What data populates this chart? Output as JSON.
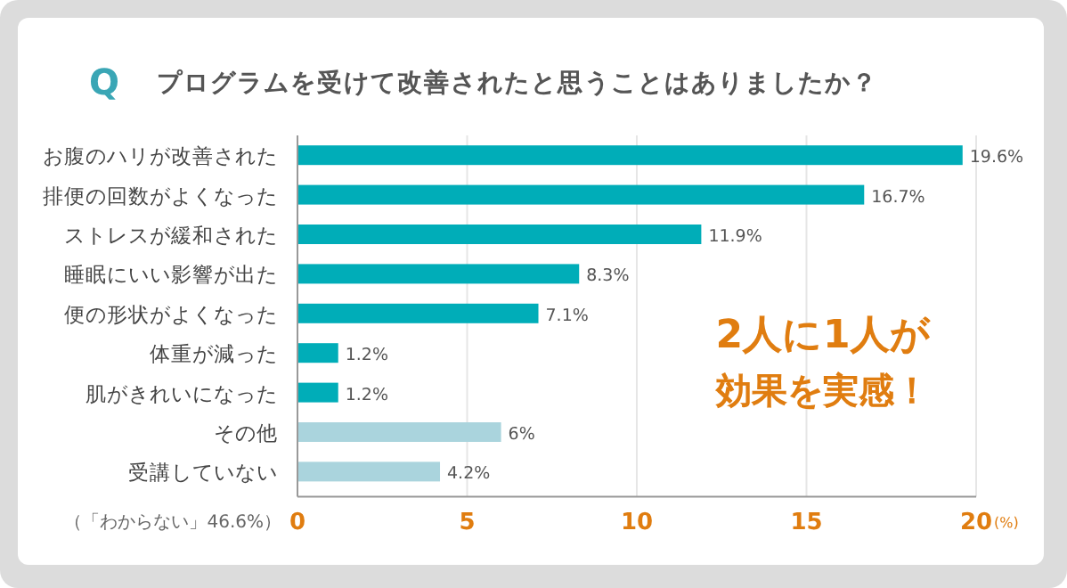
{
  "chart_data": {
    "type": "bar",
    "orientation": "horizontal",
    "title": "プログラムを受けて改善されたと思うことはありましたか？",
    "xlabel": "(%)",
    "categories": [
      "お腹のハリが改善された",
      "排便の回数がよくなった",
      "ストレスが緩和された",
      "睡眠にいい影響が出た",
      "便の形状がよくなった",
      "体重が減った",
      "肌がきれいになった",
      "その他",
      "受講していない"
    ],
    "values": [
      19.6,
      16.7,
      11.9,
      8.3,
      7.1,
      1.2,
      1.2,
      6,
      4.2
    ],
    "colors": [
      "#00adb8",
      "#00adb8",
      "#00adb8",
      "#00adb8",
      "#00adb8",
      "#00adb8",
      "#00adb8",
      "#aad4dd",
      "#aad4dd"
    ],
    "value_labels": [
      "19.6%",
      "16.7%",
      "11.9%",
      "8.3%",
      "7.1%",
      "1.2%",
      "1.2%",
      "6%",
      "4.2%"
    ],
    "xlim": [
      0,
      20
    ],
    "xticks": [
      0,
      5,
      10,
      15,
      20
    ],
    "grid": "x",
    "annotations": [
      "Q",
      "（「わからない」46.6%）",
      "2人に1人が",
      "効果を実感！"
    ]
  }
}
